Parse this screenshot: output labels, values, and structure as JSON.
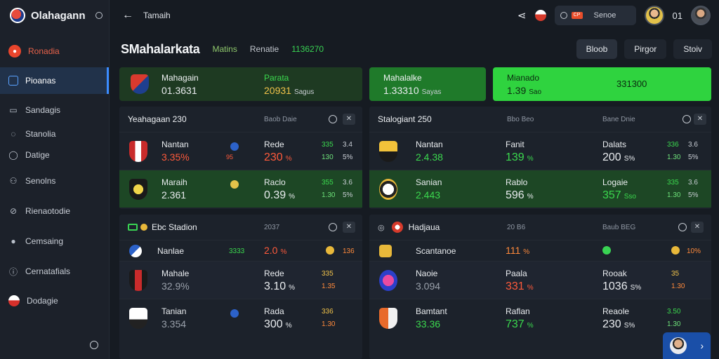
{
  "brand": {
    "name": "Olahagann"
  },
  "sidebar": {
    "items": [
      {
        "label": "Ronadia",
        "icon": "fire-icon",
        "state": "hot"
      },
      {
        "label": "Pioanas",
        "icon": "square-icon",
        "state": "active"
      },
      {
        "label": "Sandagis",
        "icon": "clipboard-icon",
        "state": ""
      },
      {
        "label": "Stanolia",
        "icon": "chat-icon",
        "state": ""
      },
      {
        "label": "Datige",
        "icon": "bubble-icon",
        "state": ""
      },
      {
        "label": "Senolns",
        "icon": "people-icon",
        "state": ""
      },
      {
        "label": "Rienaotodie",
        "icon": "tag-icon",
        "state": ""
      },
      {
        "label": "Cemsaing",
        "icon": "user-icon",
        "state": ""
      },
      {
        "label": "Cernatafials",
        "icon": "info-icon",
        "state": ""
      },
      {
        "label": "Dodagie",
        "icon": "flag-icon",
        "state": ""
      }
    ]
  },
  "topbar": {
    "title": "Tamaih",
    "search_label": "Senoe",
    "search_badge": "CP",
    "count": "01"
  },
  "section": {
    "title": "SMahalarkata",
    "sub1": "Matins",
    "sub2": "Renatie",
    "num": "1136270",
    "buttons": [
      "Bloob",
      "Pirgor",
      "Stoiv"
    ]
  },
  "cards": [
    {
      "title": "Mahagain",
      "value": "01.3631",
      "extra_value": "20931",
      "extra_unit": "Sagus",
      "extra_title": "Parata"
    },
    {
      "title": "Mahalalke",
      "value": "1.33310",
      "unit": "Sayas"
    },
    {
      "title": "Mianado",
      "value": "1.39",
      "unit": "Sao",
      "right_value": "331300"
    }
  ],
  "panels": [
    {
      "title": "Yeahagaan 230",
      "muted": "Baob Daie",
      "rows": [
        {
          "name": "Nantan",
          "value": "3.35%",
          "mini": "95",
          "name2": "Rede",
          "value2": "230",
          "unit2": "%",
          "g1": "335",
          "g2": "130",
          "g3": "3.4",
          "g4": "5%",
          "tone": "",
          "vcol": "red"
        },
        {
          "name": "Maraih",
          "value": "2.361",
          "mini": "",
          "name2": "Raclo",
          "value2": "0.39",
          "unit2": "%",
          "g1": "355",
          "g2": "1.30",
          "g3": "3.6",
          "g4": "5%",
          "tone": "green",
          "vcol": "wht"
        }
      ]
    },
    {
      "title": "Stalogiant 250",
      "muted": "Bbo Beo",
      "muted2": "Bane Dnie",
      "rows": [
        {
          "name": "Nantan",
          "value": "2.4.38",
          "name2": "Fanit",
          "value2": "139",
          "unit2": "%",
          "name3": "Dalats",
          "value3": "200",
          "unit3": "S%",
          "g1": "336",
          "g2": "1.30",
          "g3": "3.6",
          "g4": "5%",
          "tone": "",
          "vcol": "grn"
        },
        {
          "name": "Sanian",
          "value": "2.443",
          "name2": "Rablo",
          "value2": "596",
          "unit2": "%",
          "name3": "Logaie",
          "value3": "357",
          "unit3": "Sso",
          "g1": "335",
          "g2": "1.30",
          "g3": "3.6",
          "g4": "5%",
          "tone": "green",
          "vcol": "grn"
        }
      ]
    },
    {
      "title": "Ebc Stadion",
      "muted": "2037",
      "rows": [
        {
          "name": "Nanlae",
          "value": "",
          "mini": "3333",
          "name2": "2.0",
          "value2": "",
          "unit2": "%",
          "g1": "136",
          "g2": "",
          "g3": "",
          "g4": "",
          "tone": "",
          "vcol": "red"
        },
        {
          "name": "Mahale",
          "value": "32.9%",
          "mini": "",
          "name2": "Rede",
          "value2": "3.10",
          "unit2": "%",
          "g1": "335",
          "g2": "1.35",
          "g3": "",
          "g4": "",
          "tone": "dim",
          "vcol": "wht"
        },
        {
          "name": "Tanian",
          "value": "3.354",
          "mini": "",
          "name2": "Rada",
          "value2": "300",
          "unit2": "%",
          "g1": "336",
          "g2": "1.30",
          "g3": "",
          "g4": "",
          "tone": "",
          "vcol": "wht"
        }
      ]
    },
    {
      "title": "Hadjaua",
      "muted": "20 B6",
      "muted2": "Baub BEG",
      "rows": [
        {
          "name": "Scantanoe",
          "name2": "111",
          "unit2": "%",
          "g1": "10%",
          "tone": ""
        },
        {
          "name": "Naoie",
          "value": "3.094",
          "name2": "Paala",
          "value2": "331",
          "unit2": "%",
          "name3": "Rooak",
          "value3": "1036",
          "unit3": "S%",
          "g1": "35",
          "g2": "1.30",
          "tone": "dim"
        },
        {
          "name": "Bamtant",
          "value": "33.36",
          "name2": "Raflan",
          "value2": "737",
          "unit2": "%",
          "name3": "Reaole",
          "value3": "230",
          "unit3": "S%",
          "g1": "3.50",
          "g2": "1.30",
          "tone": ""
        }
      ]
    }
  ]
}
